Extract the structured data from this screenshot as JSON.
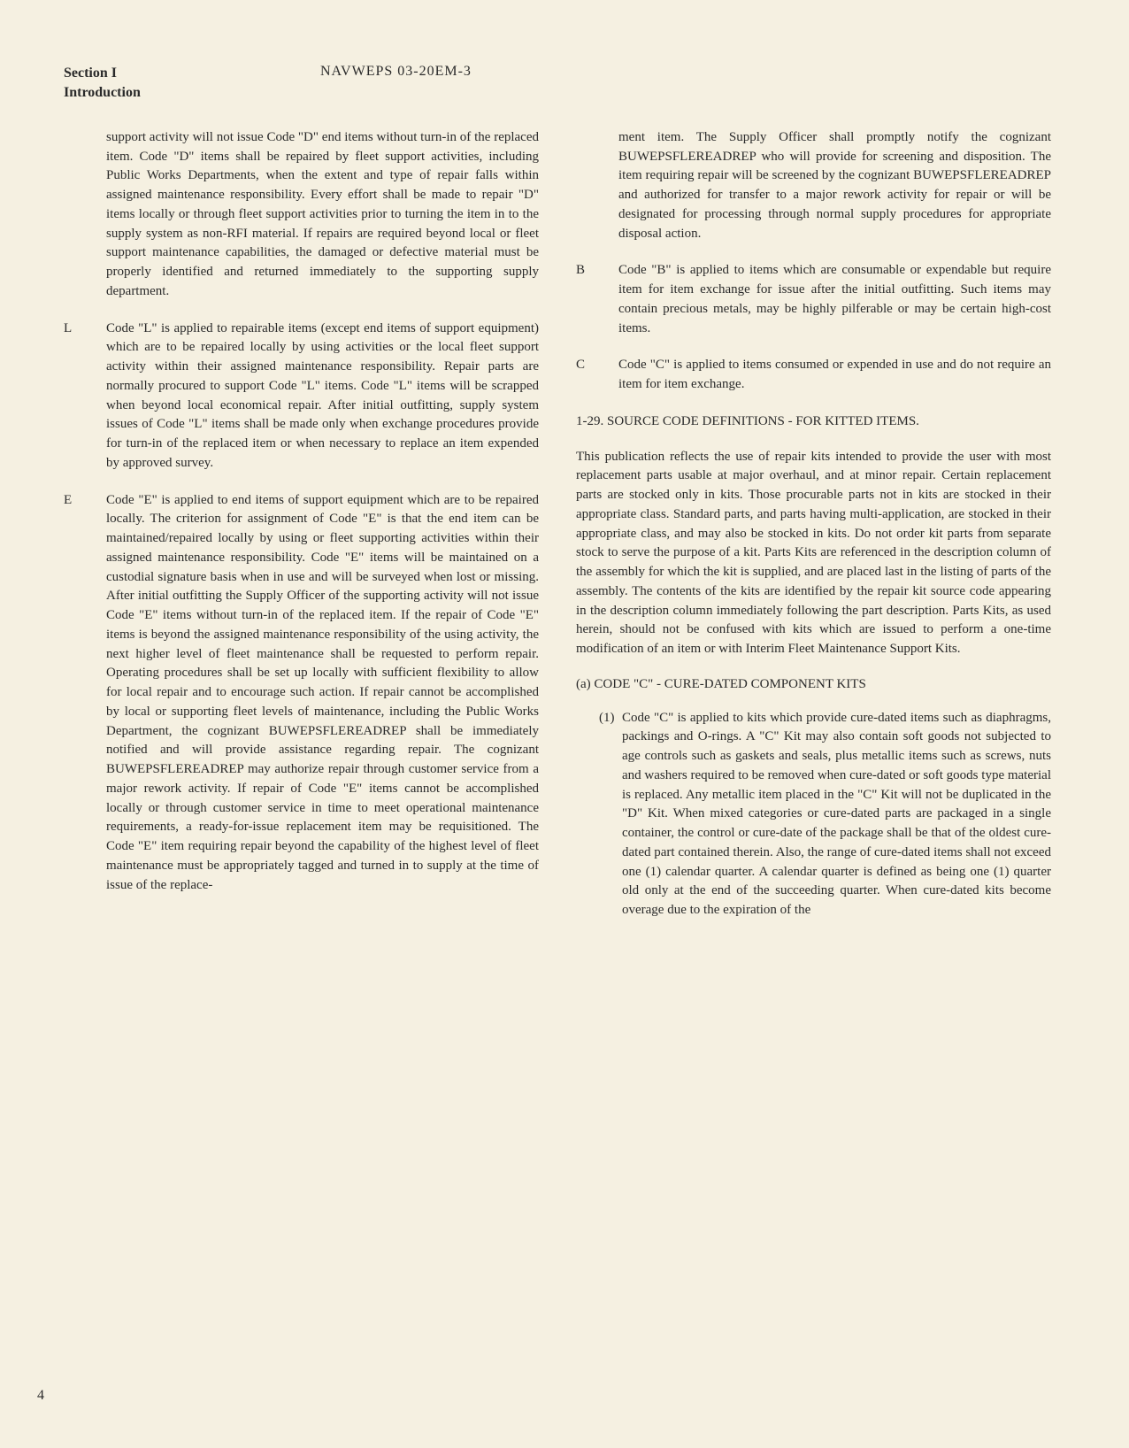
{
  "header": {
    "section_line1": "Section I",
    "section_line2": "Introduction",
    "doc_number": "NAVWEPS 03-20EM-3"
  },
  "colors": {
    "background": "#f5f0e1",
    "text": "#2a2a2a"
  },
  "left_column": {
    "intro": "support activity will not issue Code \"D\" end items without turn-in of the replaced item. Code \"D\" items shall be repaired by fleet support activities, including Public Works Departments, when the extent and type of repair falls within assigned maintenance responsibility. Every effort shall be made to repair \"D\" items locally or through fleet support activities prior to turning the item in to the supply system as non-RFI material. If repairs are required beyond local or fleet support maintenance capabilities, the damaged or defective material must be properly identified and returned immediately to the supporting supply department.",
    "code_L": {
      "letter": "L",
      "text": "Code \"L\" is applied to repairable items (except end items of support equipment) which are to be repaired locally by using activities or the local fleet support activity within their assigned maintenance responsibility. Repair parts are normally procured to support Code \"L\" items. Code \"L\" items will be scrapped when beyond local economical repair. After initial outfitting, supply system issues of Code \"L\" items shall be made only when exchange procedures provide for turn-in of the replaced item or when necessary to replace an item expended by approved survey."
    },
    "code_E": {
      "letter": "E",
      "text": "Code \"E\" is applied to end items of support equipment which are to be repaired locally. The criterion for assignment of Code \"E\" is that the end item can be maintained/repaired locally by using or fleet supporting activities within their assigned maintenance responsibility. Code \"E\" items will be maintained on a custodial signature basis when in use and will be surveyed when lost or missing. After initial outfitting the Supply Officer of the supporting activity will not issue Code \"E\" items without turn-in of the replaced item. If the repair of Code \"E\" items is beyond the assigned maintenance responsibility of the using activity, the next higher level of fleet maintenance shall be requested to perform repair. Operating procedures shall be set up locally with sufficient flexibility to allow for local repair and to encourage such action. If repair cannot be accomplished by local or supporting fleet levels of maintenance, including the Public Works Department, the cognizant BUWEPSFLEREADREP shall be immediately notified and will provide assistance regarding repair. The cognizant BUWEPSFLEREADREP may authorize repair through customer service from a major rework activity. If repair of Code \"E\" items cannot be accomplished locally or through customer service in time to meet operational maintenance requirements, a ready-for-issue replacement item may be requisitioned. The Code \"E\" item requiring repair beyond the capability of the highest level of fleet maintenance must be appropriately tagged and turned in to supply at the time of issue of the replace-"
    }
  },
  "right_column": {
    "cont": "ment item. The Supply Officer shall promptly notify the cognizant BUWEPSFLEREADREP who will provide for screening and disposition. The item requiring repair will be screened by the cognizant BUWEPSFLEREADREP and authorized for transfer to a major rework activity for repair or will be designated for processing through normal supply procedures for appropriate disposal action.",
    "code_B": {
      "letter": "B",
      "text": "Code \"B\" is applied to items which are consumable or expendable but require item for item exchange for issue after the initial outfitting. Such items may contain precious metals, may be highly pilferable or may be certain high-cost items."
    },
    "code_C": {
      "letter": "C",
      "text": "Code \"C\" is applied to items consumed or expended in use and do not require an item for item exchange."
    },
    "heading_129": "1-29. SOURCE CODE DEFINITIONS - FOR KITTED ITEMS.",
    "para_kits": "This publication reflects the use of repair kits intended to provide the user with most replacement parts usable at major overhaul, and at minor repair. Certain replacement parts are stocked only in kits. Those procurable parts not in kits are stocked in their appropriate class. Standard parts, and parts having multi-application, are stocked in their appropriate class, and may also be stocked in kits. Do not order kit parts from separate stock to serve the purpose of a kit. Parts Kits are referenced in the description column of the assembly for which the kit is supplied, and are placed last in the listing of parts of the assembly. The contents of the kits are identified by the repair kit source code appearing in the description column immediately following the part description. Parts Kits, as used herein, should not be confused with kits which are issued to perform a one-time modification of an item or with Interim Fleet Maintenance Support Kits.",
    "sub_a": "(a) CODE \"C\" - CURE-DATED COMPONENT KITS",
    "sub_1": {
      "num": "(1)",
      "text": "Code \"C\" is applied to kits which provide cure-dated items such as diaphragms, packings and O-rings. A \"C\" Kit may also contain soft goods not subjected to age controls such as gaskets and seals, plus metallic items such as screws, nuts and washers required to be removed when cure-dated or soft goods type material is replaced. Any metallic item placed in the \"C\" Kit will not be duplicated in the \"D\" Kit. When mixed categories or cure-dated parts are packaged in a single container, the control or cure-date of the package shall be that of the oldest cure-dated part contained therein. Also, the range of cure-dated items shall not exceed one (1) calendar quarter. A calendar quarter is defined as being one (1) quarter old only at the end of the succeeding quarter. When cure-dated kits become overage due to the expiration of the"
    }
  },
  "page_number": "4"
}
